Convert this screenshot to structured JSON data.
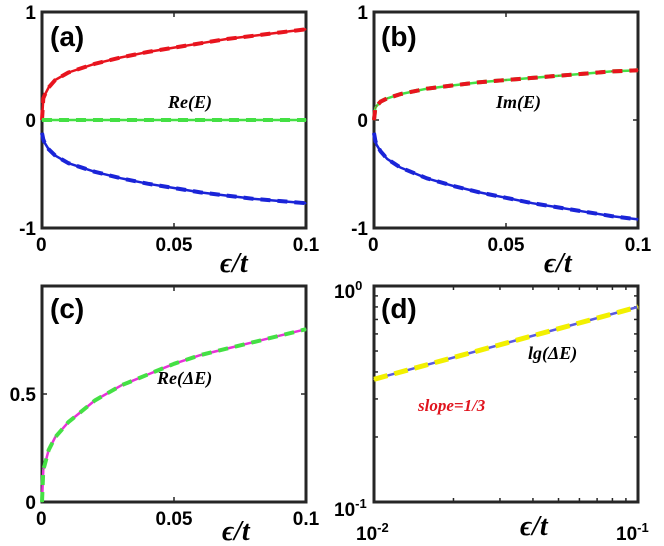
{
  "chart_data": [
    {
      "id": "a",
      "type": "line",
      "panel_label": "(a)",
      "annotation": "Re(E)",
      "xlabel": "ϵ/t",
      "xlim": [
        0,
        0.1
      ],
      "ylim": [
        -1,
        1
      ],
      "xticks": [
        0,
        0.05,
        0.1
      ],
      "xtick_labels": [
        "0",
        "0.05",
        "0.1"
      ],
      "yticks": [
        -1,
        0,
        1
      ],
      "ytick_labels": [
        "-1",
        "0",
        "1"
      ],
      "series": [
        {
          "name": "Re(E) upper",
          "color": "#e8141e",
          "style": "solid+dashed",
          "x": [
            0,
            0.0005,
            0.001,
            0.0025,
            0.005,
            0.01,
            0.02,
            0.03,
            0.04,
            0.05,
            0.06,
            0.07,
            0.08,
            0.09,
            0.1
          ],
          "y": [
            0.0,
            0.2,
            0.23,
            0.3,
            0.37,
            0.44,
            0.52,
            0.58,
            0.63,
            0.67,
            0.71,
            0.75,
            0.78,
            0.81,
            0.84
          ]
        },
        {
          "name": "Re(E) middle",
          "color": "#44e044",
          "style": "solid+dashed",
          "x": [
            0,
            0.1
          ],
          "y": [
            0.0,
            0.0
          ]
        },
        {
          "name": "Re(E) lower",
          "color": "#1a24d8",
          "style": "solid+dashed",
          "x": [
            0,
            0.0005,
            0.001,
            0.0025,
            0.005,
            0.01,
            0.02,
            0.03,
            0.04,
            0.05,
            0.06,
            0.07,
            0.08,
            0.09,
            0.1
          ],
          "y": [
            -0.12,
            -0.18,
            -0.21,
            -0.27,
            -0.33,
            -0.4,
            -0.48,
            -0.54,
            -0.59,
            -0.63,
            -0.67,
            -0.7,
            -0.73,
            -0.75,
            -0.77
          ]
        }
      ]
    },
    {
      "id": "b",
      "type": "line",
      "panel_label": "(b)",
      "annotation": "Im(E)",
      "xlabel": "ϵ/t",
      "xlim": [
        0,
        0.1
      ],
      "ylim": [
        -1,
        1
      ],
      "xticks": [
        0,
        0.05,
        0.1
      ],
      "xtick_labels": [
        "0",
        "0.05",
        "0.1"
      ],
      "yticks": [
        -1,
        0,
        1
      ],
      "ytick_labels": [
        "-1",
        "0",
        "1"
      ],
      "series": [
        {
          "name": "Im(E) upper green",
          "color": "#44e044",
          "style": "solid+dashed",
          "x": [
            0,
            0.0005,
            0.001,
            0.0025,
            0.005,
            0.01,
            0.02,
            0.03,
            0.04,
            0.05,
            0.06,
            0.07,
            0.08,
            0.09,
            0.1
          ],
          "y": [
            0.0,
            0.11,
            0.13,
            0.17,
            0.2,
            0.24,
            0.29,
            0.32,
            0.35,
            0.37,
            0.39,
            0.41,
            0.43,
            0.45,
            0.46
          ]
        },
        {
          "name": "Im(E) upper red",
          "color": "#e8141e",
          "style": "dashed",
          "x": [
            0,
            0.0005,
            0.001,
            0.0025,
            0.005,
            0.01,
            0.02,
            0.03,
            0.04,
            0.05,
            0.06,
            0.07,
            0.08,
            0.09,
            0.1
          ],
          "y": [
            0.0,
            0.11,
            0.13,
            0.17,
            0.2,
            0.24,
            0.29,
            0.32,
            0.35,
            0.37,
            0.39,
            0.41,
            0.43,
            0.45,
            0.46
          ]
        },
        {
          "name": "Im(E) lower",
          "color": "#1a24d8",
          "style": "solid+dashed",
          "x": [
            0,
            0.0005,
            0.001,
            0.0025,
            0.005,
            0.01,
            0.02,
            0.03,
            0.04,
            0.05,
            0.06,
            0.07,
            0.08,
            0.09,
            0.1
          ],
          "y": [
            -0.12,
            -0.19,
            -0.23,
            -0.29,
            -0.36,
            -0.44,
            -0.54,
            -0.61,
            -0.67,
            -0.72,
            -0.77,
            -0.81,
            -0.85,
            -0.89,
            -0.92
          ]
        }
      ]
    },
    {
      "id": "c",
      "type": "line",
      "panel_label": "(c)",
      "annotation": "Re(ΔE)",
      "xlabel": "ϵ/t",
      "xlim": [
        0,
        0.1
      ],
      "ylim": [
        0,
        1
      ],
      "xticks": [
        0,
        0.05,
        0.1
      ],
      "xtick_labels": [
        "0",
        "0.05",
        "0.1"
      ],
      "yticks": [
        0,
        0.5
      ],
      "ytick_labels": [
        "0",
        "0.5"
      ],
      "series": [
        {
          "name": "Re(ΔE)",
          "color": "#e832d8",
          "style": "solid",
          "x": [
            0,
            0.0005,
            0.001,
            0.0025,
            0.005,
            0.01,
            0.02,
            0.03,
            0.04,
            0.05,
            0.06,
            0.07,
            0.08,
            0.09,
            0.1
          ],
          "y": [
            0.0,
            0.15,
            0.17,
            0.24,
            0.3,
            0.37,
            0.47,
            0.54,
            0.59,
            0.64,
            0.68,
            0.71,
            0.74,
            0.77,
            0.8
          ]
        },
        {
          "name": "Re(ΔE) fit",
          "color": "#44e044",
          "style": "dashed",
          "x": [
            0,
            0.0005,
            0.001,
            0.0025,
            0.005,
            0.01,
            0.02,
            0.03,
            0.04,
            0.05,
            0.06,
            0.07,
            0.08,
            0.09,
            0.1
          ],
          "y": [
            0.0,
            0.15,
            0.17,
            0.24,
            0.3,
            0.37,
            0.47,
            0.54,
            0.59,
            0.64,
            0.68,
            0.71,
            0.74,
            0.77,
            0.8
          ]
        }
      ]
    },
    {
      "id": "d",
      "type": "line",
      "scale": "log-log",
      "panel_label": "(d)",
      "annotation": "lg(ΔE)",
      "annotation2": "slope=1/3",
      "xlabel": "ϵ/t",
      "xlim": [
        0.01,
        0.1
      ],
      "ylim": [
        0.1,
        1
      ],
      "xtick_labels_base": [
        "10",
        "10"
      ],
      "xtick_labels_exp": [
        "-2",
        "-1"
      ],
      "ytick_labels_base": [
        "10",
        "10"
      ],
      "ytick_labels_exp": [
        "-1",
        "0"
      ],
      "series": [
        {
          "name": "lg(ΔE)",
          "color": "#5a5ae0",
          "style": "solid",
          "x": [
            0.01,
            0.1
          ],
          "y": [
            0.37,
            0.8
          ]
        },
        {
          "name": "slope 1/3 fit",
          "color": "#f2f000",
          "style": "dashed",
          "x": [
            0.01,
            0.1
          ],
          "y": [
            0.37,
            0.8
          ]
        }
      ]
    }
  ]
}
